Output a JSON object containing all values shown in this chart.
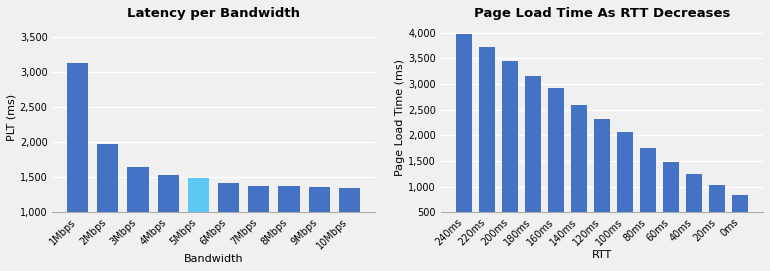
{
  "chart1": {
    "title": "Latency per Bandwidth",
    "xlabel": "Bandwidth",
    "ylabel": "PLT (ms)",
    "categories": [
      "1Mbps",
      "2Mbps",
      "3Mbps",
      "4Mbps",
      "5Mbps",
      "6Mbps",
      "7Mbps",
      "8Mbps",
      "9Mbps",
      "10Mbps"
    ],
    "values": [
      3130,
      1970,
      1650,
      1530,
      1480,
      1420,
      1380,
      1380,
      1360,
      1345
    ],
    "bar_colors": [
      "#4472C4",
      "#4472C4",
      "#4472C4",
      "#4472C4",
      "#5BC8F5",
      "#4472C4",
      "#4472C4",
      "#4472C4",
      "#4472C4",
      "#4472C4"
    ],
    "ylim": [
      1000,
      3700
    ],
    "yticks": [
      1000,
      1500,
      2000,
      2500,
      3000,
      3500
    ]
  },
  "chart2": {
    "title": "Page Load Time As RTT Decreases",
    "xlabel": "RTT",
    "ylabel": "Page Load Time (ms)",
    "categories": [
      "240ms",
      "220ms",
      "200ms",
      "180ms",
      "160ms",
      "140ms",
      "120ms",
      "100ms",
      "80ms",
      "60ms",
      "40ms",
      "20ms",
      "0ms"
    ],
    "values": [
      3980,
      3730,
      3450,
      3160,
      2920,
      2600,
      2310,
      2060,
      1760,
      1480,
      1250,
      1030,
      830
    ],
    "bar_color": "#4472C4",
    "ylim": [
      500,
      4200
    ],
    "yticks": [
      500,
      1000,
      1500,
      2000,
      2500,
      3000,
      3500,
      4000
    ]
  },
  "background_color": "#f0f0f0",
  "axes_background": "#f0f0f0",
  "grid_color": "#ffffff",
  "title_fontsize": 9.5,
  "label_fontsize": 8,
  "tick_fontsize": 7
}
